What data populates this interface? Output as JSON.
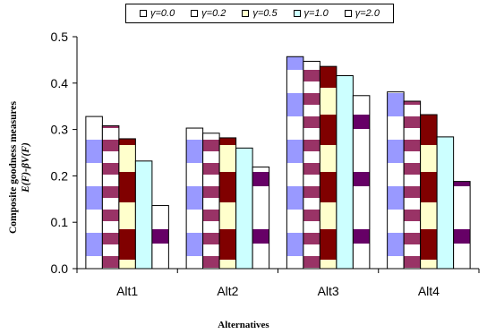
{
  "chart_data": {
    "type": "bar",
    "categories": [
      "Alt1",
      "Alt2",
      "Alt3",
      "Alt4"
    ],
    "series": [
      {
        "name": "γ=0.0",
        "values": [
          0.328,
          0.303,
          0.457,
          0.381
        ],
        "color": "#9999ff",
        "pattern": "blocks"
      },
      {
        "name": "γ=0.2",
        "values": [
          0.308,
          0.292,
          0.447,
          0.361
        ],
        "color": "#993366",
        "pattern": "checker"
      },
      {
        "name": "γ=0.5",
        "values": [
          0.28,
          0.282,
          0.436,
          0.332
        ],
        "color": "#800000",
        "pattern": "blocks"
      },
      {
        "name": "γ=1.0",
        "values": [
          0.232,
          0.26,
          0.416,
          0.284
        ],
        "color": "#ccffff",
        "pattern": "solid"
      },
      {
        "name": "γ=2.0",
        "values": [
          0.136,
          0.219,
          0.373,
          0.188
        ],
        "color": "#660066",
        "pattern": "sparse"
      }
    ],
    "ylabel_line1": "Composite goodness measures",
    "ylabel_line2": "E(F)-βV(F)",
    "xlabel": "Alternatives",
    "ylim": [
      0,
      0.5
    ],
    "yticks": [
      "0.0",
      "0.1",
      "0.2",
      "0.3",
      "0.4",
      "0.5"
    ],
    "grid": false,
    "legend_placement": "top"
  }
}
